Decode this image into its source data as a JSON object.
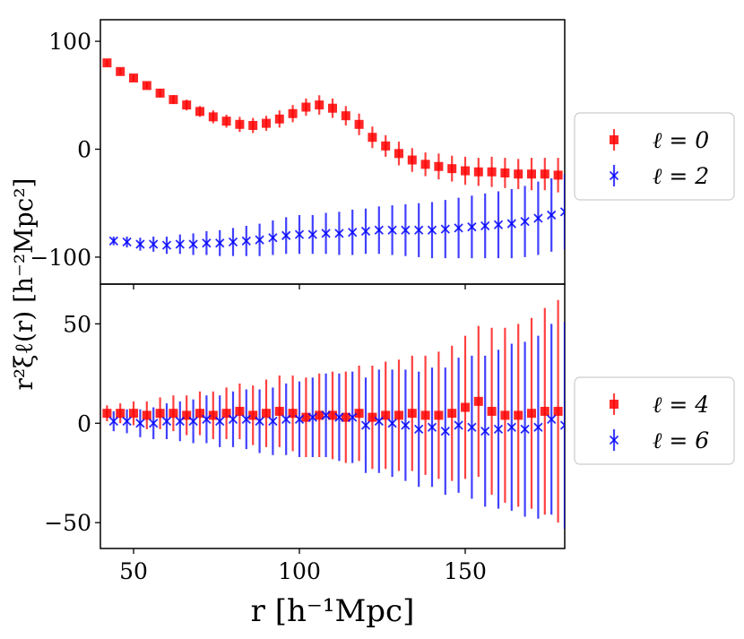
{
  "chart_data": {
    "type": "scatter",
    "xlabel": "r  [h⁻¹Mpc]",
    "ylabel": "r²ξℓ(r)  [h⁻²Mpc²]",
    "xlim": [
      40,
      180
    ],
    "x_ticks": [
      "50",
      "100",
      "150"
    ],
    "grid": false,
    "panels": [
      {
        "name": "top",
        "ylim": [
          -125,
          120
        ],
        "y_ticks": [
          "100",
          "0",
          "−100"
        ],
        "legend_placement": "right",
        "series": [
          {
            "name": "ℓ = 0",
            "marker": "square",
            "color": "#ff0000",
            "x": [
              42,
              46,
              50,
              54,
              58,
              62,
              66,
              70,
              74,
              78,
              82,
              86,
              90,
              94,
              98,
              102,
              106,
              110,
              114,
              118,
              122,
              126,
              130,
              134,
              138,
              142,
              146,
              150,
              154,
              158,
              162,
              166,
              170,
              174,
              178
            ],
            "y": [
              80,
              72,
              66,
              59,
              52,
              46,
              41,
              35,
              30,
              26,
              23,
              22,
              24,
              28,
              33,
              39,
              41,
              38,
              31,
              23,
              11,
              3,
              -4,
              -10,
              -14,
              -16,
              -18,
              -20,
              -21,
              -21,
              -22,
              -23,
              -23,
              -23,
              -24
            ],
            "err": [
              3,
              3,
              3,
              3,
              4,
              4,
              5,
              5,
              6,
              6,
              7,
              7,
              7,
              8,
              8,
              8,
              9,
              9,
              9,
              10,
              10,
              10,
              11,
              11,
              11,
              12,
              12,
              13,
              13,
              14,
              14,
              14,
              15,
              15,
              16
            ]
          },
          {
            "name": "ℓ = 2",
            "marker": "x",
            "color": "#0000ff",
            "x": [
              44,
              48,
              52,
              56,
              60,
              64,
              68,
              72,
              76,
              80,
              84,
              88,
              92,
              96,
              100,
              104,
              108,
              112,
              116,
              120,
              124,
              128,
              132,
              136,
              140,
              144,
              148,
              152,
              156,
              160,
              164,
              168,
              172,
              176,
              180
            ],
            "y": [
              -85,
              -86,
              -88,
              -88,
              -89,
              -88,
              -88,
              -87,
              -87,
              -86,
              -85,
              -84,
              -82,
              -80,
              -79,
              -79,
              -78,
              -78,
              -77,
              -76,
              -75,
              -75,
              -75,
              -75,
              -75,
              -74,
              -73,
              -72,
              -71,
              -70,
              -69,
              -67,
              -64,
              -61,
              -58
            ],
            "err": [
              4,
              5,
              6,
              7,
              8,
              9,
              10,
              11,
              12,
              13,
              14,
              15,
              16,
              17,
              18,
              18,
              19,
              20,
              21,
              21,
              22,
              23,
              24,
              25,
              26,
              27,
              28,
              29,
              30,
              31,
              32,
              33,
              34,
              34,
              35
            ]
          }
        ]
      },
      {
        "name": "bottom",
        "ylim": [
          -63,
          70
        ],
        "y_ticks": [
          "50",
          "0",
          "−50"
        ],
        "legend_placement": "right",
        "series": [
          {
            "name": "ℓ = 4",
            "marker": "square",
            "color": "#ff0000",
            "x": [
              42,
              46,
              50,
              54,
              58,
              62,
              66,
              70,
              74,
              78,
              82,
              86,
              90,
              94,
              98,
              102,
              106,
              110,
              114,
              118,
              122,
              126,
              130,
              134,
              138,
              142,
              146,
              150,
              154,
              158,
              162,
              166,
              170,
              174,
              178
            ],
            "y": [
              5,
              5,
              5,
              4,
              5,
              5,
              4,
              5,
              4,
              5,
              6,
              4,
              5,
              6,
              5,
              3,
              4,
              4,
              3,
              5,
              3,
              4,
              4,
              5,
              4,
              4,
              5,
              8,
              11,
              6,
              4,
              4,
              5,
              6,
              6
            ],
            "err": [
              4,
              5,
              6,
              7,
              8,
              9,
              10,
              11,
              12,
              13,
              14,
              15,
              17,
              18,
              19,
              20,
              21,
              22,
              23,
              24,
              26,
              27,
              28,
              29,
              30,
              32,
              34,
              36,
              38,
              42,
              44,
              46,
              48,
              52,
              56
            ]
          },
          {
            "name": "ℓ = 6",
            "marker": "x",
            "color": "#0000ff",
            "x": [
              44,
              48,
              52,
              56,
              60,
              64,
              68,
              72,
              76,
              80,
              84,
              88,
              92,
              96,
              100,
              104,
              108,
              112,
              116,
              120,
              124,
              128,
              132,
              136,
              140,
              144,
              148,
              152,
              156,
              160,
              164,
              168,
              172,
              176,
              180
            ],
            "y": [
              1,
              1,
              0,
              0,
              1,
              1,
              1,
              2,
              1,
              2,
              2,
              1,
              1,
              2,
              2,
              3,
              4,
              3,
              3,
              -1,
              1,
              0,
              -1,
              -3,
              -2,
              -4,
              -1,
              -2,
              -4,
              -3,
              -2,
              -3,
              -2,
              2,
              -1
            ],
            "err": [
              5,
              6,
              7,
              8,
              9,
              10,
              11,
              12,
              13,
              14,
              15,
              16,
              17,
              18,
              19,
              20,
              21,
              22,
              23,
              24,
              26,
              27,
              28,
              29,
              30,
              32,
              34,
              36,
              38,
              40,
              42,
              44,
              46,
              48,
              52
            ]
          }
        ]
      }
    ]
  }
}
